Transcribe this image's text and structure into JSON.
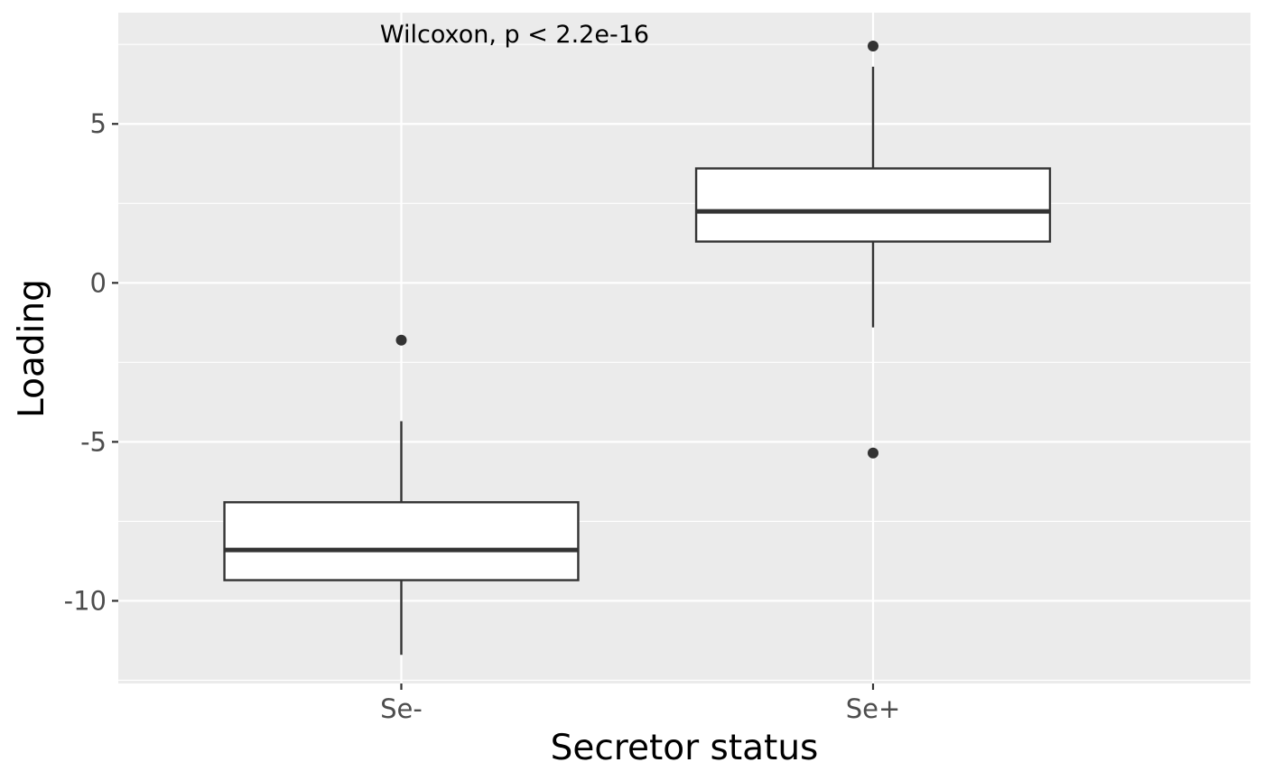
{
  "chart_data": {
    "type": "boxplot",
    "title": "",
    "xlabel": "Secretor status",
    "ylabel": "Loading",
    "categories": [
      "Se-",
      "Se+"
    ],
    "ylim": [
      -12.6,
      8.5
    ],
    "yticks": [
      {
        "value": -10,
        "label": "-10"
      },
      {
        "value": -5,
        "label": "-5"
      },
      {
        "value": 0,
        "label": "0"
      },
      {
        "value": 5,
        "label": "5"
      }
    ],
    "yminor": [
      -12.5,
      -7.5,
      -2.5,
      2.5,
      7.5
    ],
    "boxes": [
      {
        "category": "Se-",
        "whisker_low": -11.7,
        "q1": -9.35,
        "median": -8.4,
        "q3": -6.9,
        "whisker_high": -4.35,
        "outliers": [
          -1.8
        ]
      },
      {
        "category": "Se+",
        "whisker_low": -1.4,
        "q1": 1.3,
        "median": 2.25,
        "q3": 3.6,
        "whisker_high": 6.8,
        "outliers": [
          7.45,
          -5.35
        ]
      }
    ],
    "annotation": "Wilcoxon, p < 2.2e-16",
    "grid": true,
    "legend": "none"
  }
}
